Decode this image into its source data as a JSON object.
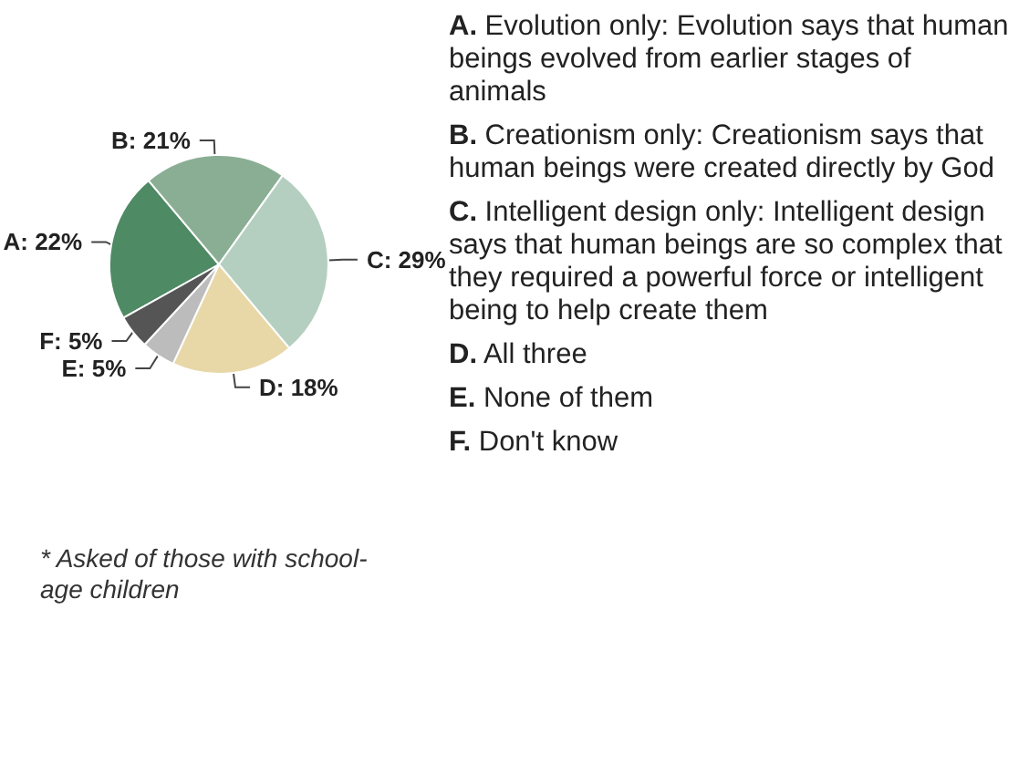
{
  "chart_data": {
    "type": "pie",
    "categories": [
      "A",
      "B",
      "C",
      "D",
      "E",
      "F"
    ],
    "values": [
      22,
      21,
      29,
      18,
      5,
      5
    ],
    "value_labels": [
      "22%",
      "21%",
      "29%",
      "18%",
      "5%",
      "5%"
    ],
    "colors": [
      "#4e8a64",
      "#8aae94",
      "#b4cfc0",
      "#e8d8a8",
      "#bcbcbc",
      "#555555"
    ],
    "annotations": [
      "A. Evolution only: Evolution says that human beings evolved from earlier stages of animals",
      "B. Creationism only: Creationism says that human beings were created directly by God",
      "C. Intelligent design only: Intelligent design says that human beings are so complex that they required a powerful force or intelligent being to help create them",
      "D. All three",
      "E. None of them",
      "F. Don't know",
      "* Asked of those with school-age children"
    ],
    "legend": false
  }
}
